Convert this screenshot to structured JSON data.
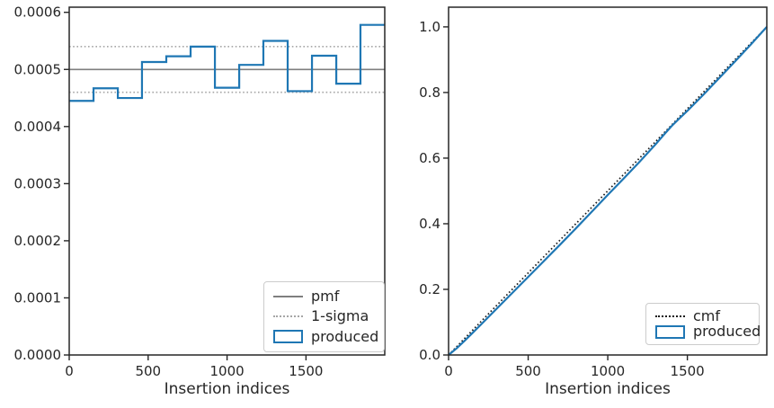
{
  "figure": {
    "background": "#ffffff",
    "text_color": "#262626",
    "accent_blue": "#1f77b4",
    "pmf_gray": "#7f7f7f",
    "sigma_gray": "#a6a6a6",
    "cmf_black": "#1a1a1a"
  },
  "chart_data": [
    {
      "type": "step-histogram",
      "title": "",
      "xlabel": "Insertion indices",
      "ylabel": "",
      "grid": false,
      "xlim": [
        0,
        1999
      ],
      "ylim": [
        0,
        0.000609
      ],
      "xticks": [
        0,
        500,
        1000,
        1500
      ],
      "xtick_labels": [
        "0",
        "500",
        "1000",
        "1500"
      ],
      "yticks": [
        0,
        0.0001,
        0.0002,
        0.0003,
        0.0004,
        0.0005,
        0.0006
      ],
      "ytick_labels": [
        "0.0000",
        "0.0001",
        "0.0002",
        "0.0003",
        "0.0004",
        "0.0005",
        "0.0006"
      ],
      "bin_edges": [
        0,
        154,
        308,
        461,
        615,
        769,
        923,
        1077,
        1230,
        1384,
        1538,
        1692,
        1845,
        1999
      ],
      "bin_density": [
        0.000445,
        0.000467,
        0.00045,
        0.000513,
        0.000523,
        0.00054,
        0.000468,
        0.000508,
        0.00055,
        0.000462,
        0.000524,
        0.000475,
        0.000578
      ],
      "pmf_value": 0.0005,
      "sigma_upper": 0.00054,
      "sigma_lower": 0.00046,
      "legend_position": "lower right",
      "legend": [
        {
          "label": "pmf",
          "style": "solid-line",
          "color": "#7f7f7f"
        },
        {
          "label": "1-sigma",
          "style": "dotted-line",
          "color": "#a6a6a6"
        },
        {
          "label": "produced",
          "style": "patch-outline",
          "color": "#1f77b4"
        }
      ]
    },
    {
      "type": "line",
      "title": "",
      "xlabel": "Insertion indices",
      "ylabel": "",
      "grid": false,
      "xlim": [
        0,
        1999
      ],
      "ylim": [
        0,
        1.06
      ],
      "xticks": [
        0,
        500,
        1000,
        1500
      ],
      "xtick_labels": [
        "0",
        "500",
        "1000",
        "1500"
      ],
      "yticks": [
        0.0,
        0.2,
        0.4,
        0.6,
        0.8,
        1.0
      ],
      "ytick_labels": [
        "0.0",
        "0.2",
        "0.4",
        "0.6",
        "0.8",
        "1.0"
      ],
      "series": [
        {
          "name": "cmf",
          "style": "dotted",
          "color": "#1a1a1a",
          "x": [
            0,
            1999
          ],
          "y": [
            0,
            1.0
          ]
        },
        {
          "name": "produced",
          "style": "solid",
          "color": "#1f77b4",
          "x": [
            0,
            50,
            100,
            150,
            200,
            300,
            400,
            500,
            600,
            700,
            800,
            900,
            1000,
            1100,
            1200,
            1300,
            1350,
            1400,
            1450,
            1500,
            1600,
            1700,
            1800,
            1900,
            1999
          ],
          "y": [
            0,
            0.02,
            0.043,
            0.067,
            0.091,
            0.14,
            0.189,
            0.238,
            0.287,
            0.336,
            0.386,
            0.437,
            0.488,
            0.538,
            0.589,
            0.642,
            0.67,
            0.697,
            0.721,
            0.744,
            0.793,
            0.844,
            0.895,
            0.947,
            1.0
          ]
        }
      ],
      "legend_position": "lower right",
      "legend": [
        {
          "label": "cmf",
          "style": "dotted-line",
          "color": "#1a1a1a"
        },
        {
          "label": "produced",
          "style": "patch-outline",
          "color": "#1f77b4"
        }
      ]
    }
  ]
}
